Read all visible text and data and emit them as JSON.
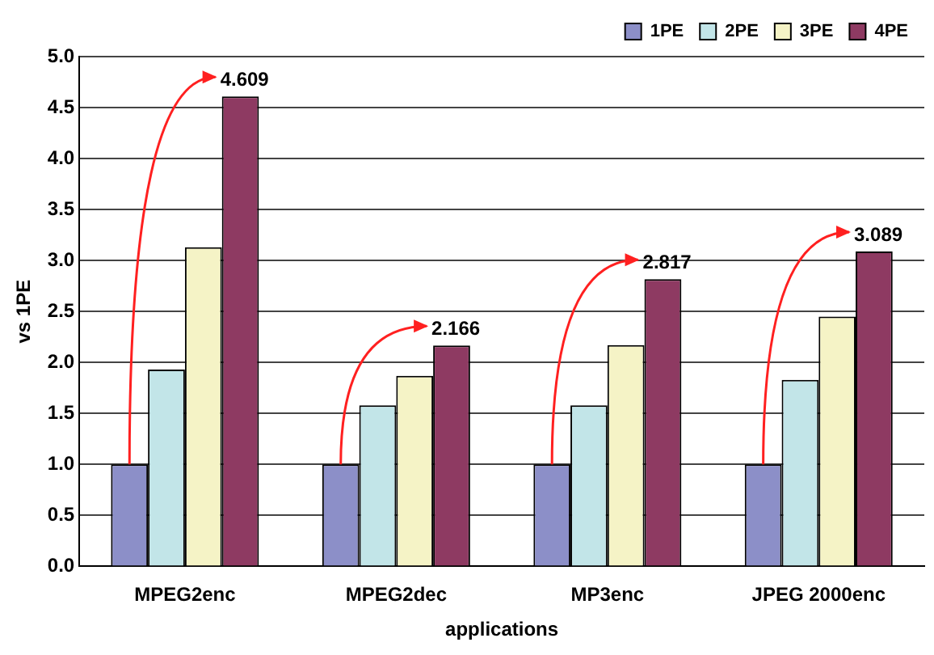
{
  "chart_data": {
    "type": "bar",
    "xlabel": "applications",
    "ylabel": "vs 1PE",
    "categories": [
      "MPEG2enc",
      "MPEG2dec",
      "MP3enc",
      "JPEG 2000enc"
    ],
    "series": [
      {
        "name": "1PE",
        "color": "#8c8fc8",
        "values": [
          1,
          1,
          1,
          1
        ]
      },
      {
        "name": "2PE",
        "color": "#c2e5e8",
        "values": [
          1.93,
          1.58,
          1.58,
          1.83
        ]
      },
      {
        "name": "3PE",
        "color": "#f5f3c6",
        "values": [
          3.13,
          1.87,
          2.17,
          2.45
        ]
      },
      {
        "name": "4PE",
        "color": "#8e3a62",
        "values": [
          4.609,
          2.166,
          2.817,
          3.089
        ],
        "value_labels": [
          "4.609",
          "2.166",
          "2.817",
          "3.089"
        ]
      }
    ],
    "ylim": [
      0,
      5
    ],
    "yticks": [
      {
        "value": 0,
        "label": "0.0"
      },
      {
        "value": 0.5,
        "label": "0.5"
      },
      {
        "value": 1,
        "label": "1.0"
      },
      {
        "value": 1.5,
        "label": "1.5"
      },
      {
        "value": 2,
        "label": "2.0"
      },
      {
        "value": 2.5,
        "label": "2.5"
      },
      {
        "value": 3,
        "label": "3.0"
      },
      {
        "value": 3.5,
        "label": "3.5"
      },
      {
        "value": 4,
        "label": "4.0"
      },
      {
        "value": 4.5,
        "label": "4.5"
      },
      {
        "value": 5,
        "label": "5.0"
      }
    ],
    "grid": "y",
    "legend": "top right"
  }
}
